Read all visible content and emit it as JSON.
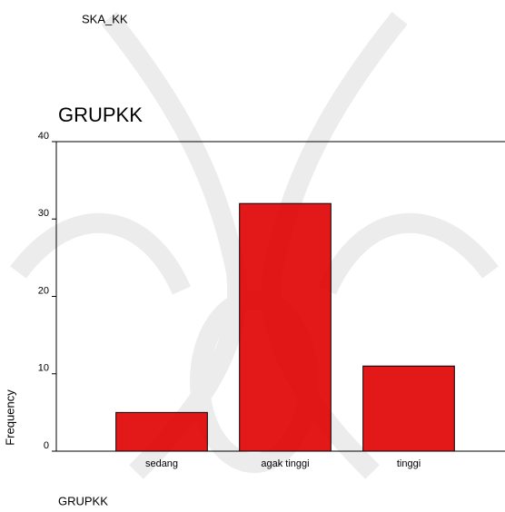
{
  "chart_data": {
    "type": "bar",
    "subtitle": "SKA_KK",
    "title": "GRUPKK",
    "xlabel": "GRUPKK",
    "ylabel": "Frequency",
    "categories": [
      "sedang",
      "agak tinggi",
      "tinggi"
    ],
    "values": [
      5,
      32,
      11
    ],
    "color": "#e00000",
    "ylim": [
      0,
      40
    ],
    "yticks": [
      0,
      10,
      20,
      30,
      40
    ],
    "grid": false
  }
}
